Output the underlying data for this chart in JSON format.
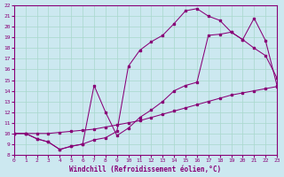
{
  "xlabel": "Windchill (Refroidissement éolien,°C)",
  "bg_color": "#cce8f0",
  "grid_color": "#a8d8cc",
  "line_color": "#880077",
  "xmin": 0,
  "xmax": 23,
  "ymin": 8,
  "ymax": 22,
  "curve1_x": [
    0,
    1,
    2,
    3,
    4,
    5,
    6,
    7,
    8,
    9,
    10,
    11,
    12,
    13,
    14,
    15,
    16,
    17,
    18,
    19,
    20,
    21,
    22,
    23
  ],
  "curve1_y": [
    10.0,
    10.0,
    10.0,
    10.0,
    10.1,
    10.2,
    10.3,
    10.4,
    10.6,
    10.8,
    11.0,
    11.2,
    11.5,
    11.8,
    12.1,
    12.4,
    12.7,
    13.0,
    13.3,
    13.6,
    13.8,
    14.0,
    14.2,
    14.4
  ],
  "curve2_x": [
    0,
    1,
    2,
    3,
    4,
    5,
    6,
    7,
    8,
    9,
    10,
    11,
    12,
    13,
    14,
    15,
    16,
    17,
    18,
    19,
    20,
    21,
    22,
    23
  ],
  "curve2_y": [
    10.0,
    10.0,
    9.5,
    9.2,
    8.5,
    8.8,
    9.0,
    9.4,
    9.6,
    10.2,
    16.3,
    17.8,
    18.6,
    19.2,
    20.3,
    21.5,
    21.7,
    21.0,
    20.6,
    19.5,
    18.8,
    18.0,
    17.3,
    15.2
  ],
  "curve3_x": [
    0,
    1,
    2,
    3,
    4,
    5,
    6,
    7,
    8,
    9,
    10,
    11,
    12,
    13,
    14,
    15,
    16,
    17,
    18,
    19,
    20,
    21,
    22,
    23
  ],
  "curve3_y": [
    10.0,
    10.0,
    9.5,
    9.2,
    8.5,
    8.8,
    9.0,
    14.5,
    12.0,
    9.8,
    10.5,
    11.5,
    12.2,
    13.0,
    14.0,
    14.5,
    14.8,
    19.2,
    19.3,
    19.5,
    18.8,
    20.8,
    18.7,
    14.5
  ]
}
